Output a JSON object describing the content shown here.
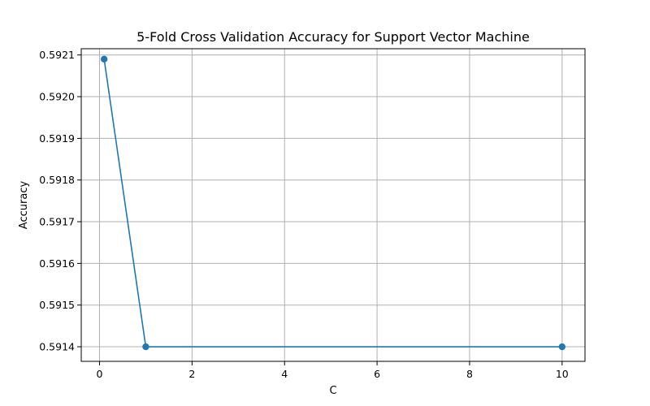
{
  "chart_data": {
    "type": "line",
    "title": "5-Fold Cross Validation Accuracy for Support Vector Machine",
    "xlabel": "C",
    "ylabel": "Accuracy",
    "x": [
      0.1,
      1,
      10
    ],
    "series": [
      {
        "values": [
          0.59209,
          0.5914,
          0.5914
        ],
        "color": "#1f77b4",
        "marker": "circle"
      }
    ],
    "xlim": [
      -0.395,
      10.495
    ],
    "ylim": [
      0.591365,
      0.592115
    ],
    "xticks": [
      0,
      2,
      4,
      6,
      8,
      10
    ],
    "xtick_labels": [
      "0",
      "2",
      "4",
      "6",
      "8",
      "10"
    ],
    "yticks": [
      0.5914,
      0.5915,
      0.5916,
      0.5917,
      0.5918,
      0.5919,
      0.592,
      0.5921
    ],
    "ytick_labels": [
      "0.5914",
      "0.5915",
      "0.5916",
      "0.5917",
      "0.5918",
      "0.5919",
      "0.5920",
      "0.5921"
    ],
    "grid": true,
    "legend": "none"
  }
}
